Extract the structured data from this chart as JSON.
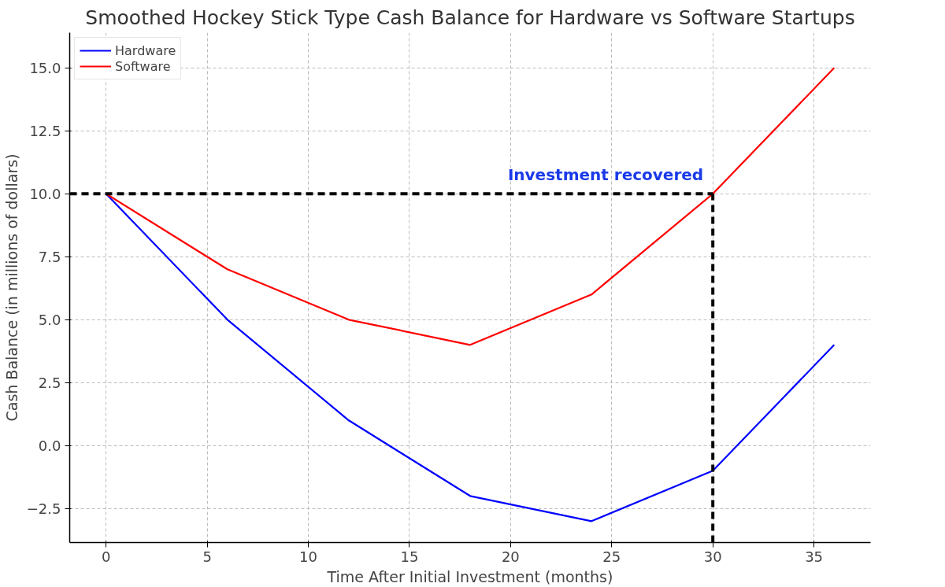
{
  "chart_data": {
    "type": "line",
    "title": "Smoothed Hockey Stick Type Cash Balance for Hardware vs Software Startups",
    "xlabel": "Time After Initial Investment (months)",
    "ylabel": "Cash Balance (in millions of dollars)",
    "x": [
      0,
      6,
      12,
      18,
      24,
      30,
      36
    ],
    "series": [
      {
        "name": "Hardware",
        "color": "#0000ff",
        "values": [
          10,
          5,
          1,
          -2,
          -3,
          -1,
          4
        ]
      },
      {
        "name": "Software",
        "color": "#ff0000",
        "values": [
          10,
          7,
          5,
          4,
          6,
          10,
          15
        ]
      }
    ],
    "xlim": [
      -1.8,
      37.8
    ],
    "xticks": [
      0,
      5,
      10,
      15,
      20,
      25,
      30,
      35
    ],
    "ylim": [
      -3.85,
      16.4
    ],
    "yticks": [
      {
        "value": -2.5,
        "label": "−2.5"
      },
      {
        "value": 0,
        "label": "0.0"
      },
      {
        "value": 2.5,
        "label": "2.5"
      },
      {
        "value": 5,
        "label": "5.0"
      },
      {
        "value": 7.5,
        "label": "7.5"
      },
      {
        "value": 10,
        "label": "10.0"
      },
      {
        "value": 12.5,
        "label": "12.5"
      },
      {
        "value": 15,
        "label": "15.0"
      }
    ],
    "ref_lines": [
      {
        "axis": "y",
        "value": 10,
        "color": "#000000",
        "line_style": "dashed"
      },
      {
        "axis": "x",
        "value": 30,
        "color": "#000000",
        "line_style": "dashed"
      }
    ],
    "annotations": [
      {
        "text": "Investment recovered",
        "x": 30,
        "y": 10
      }
    ],
    "grid": true,
    "legend": "top left",
    "marker": "none",
    "line_style": "solid"
  }
}
